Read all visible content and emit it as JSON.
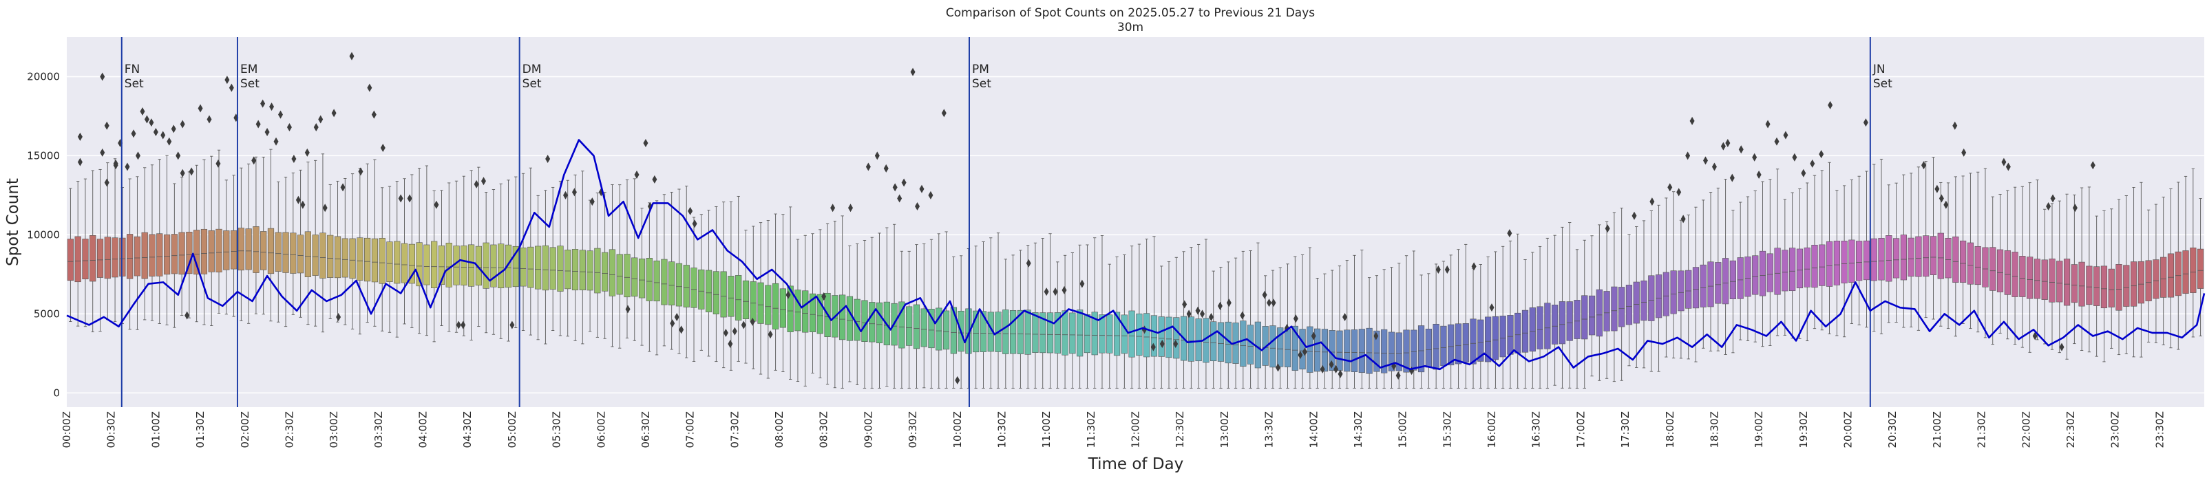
{
  "chart_data": {
    "type": "box",
    "title": "Comparison of Spot Counts on 2025.05.27 to Previous 21 Days",
    "subtitle": "30m",
    "xlabel": "Time of Day",
    "ylabel": "Spot Count",
    "ylim": [
      -900,
      22500
    ],
    "yticks": [
      0,
      5000,
      10000,
      15000,
      20000
    ],
    "ytick_labels": [
      "0",
      "5000",
      "10000",
      "15000",
      "20000"
    ],
    "x_unit_minutes": 5,
    "x_range_minutes": [
      0,
      1440
    ],
    "xticks_minutes": [
      0,
      30,
      60,
      90,
      120,
      150,
      180,
      210,
      240,
      270,
      300,
      330,
      360,
      390,
      420,
      450,
      480,
      510,
      540,
      570,
      600,
      630,
      660,
      690,
      720,
      750,
      780,
      810,
      840,
      870,
      900,
      930,
      960,
      990,
      1020,
      1050,
      1080,
      1110,
      1140,
      1170,
      1200,
      1230,
      1260,
      1290,
      1320,
      1350,
      1380,
      1410
    ],
    "xtick_labels": [
      "00:00Z",
      "00:30Z",
      "01:00Z",
      "01:30Z",
      "02:00Z",
      "02:30Z",
      "03:00Z",
      "03:30Z",
      "04:00Z",
      "04:30Z",
      "05:00Z",
      "05:30Z",
      "06:00Z",
      "06:30Z",
      "07:00Z",
      "07:30Z",
      "08:00Z",
      "08:30Z",
      "09:00Z",
      "09:30Z",
      "10:00Z",
      "10:30Z",
      "11:00Z",
      "11:30Z",
      "12:00Z",
      "12:30Z",
      "13:00Z",
      "13:30Z",
      "14:00Z",
      "14:30Z",
      "15:00Z",
      "15:30Z",
      "16:00Z",
      "16:30Z",
      "17:00Z",
      "17:30Z",
      "18:00Z",
      "18:30Z",
      "19:00Z",
      "19:30Z",
      "20:00Z",
      "20:30Z",
      "21:00Z",
      "21:30Z",
      "22:00Z",
      "22:30Z",
      "23:00Z",
      "23:30Z"
    ],
    "median_profile": {
      "minutes": [
        0,
        60,
        120,
        180,
        240,
        300,
        360,
        420,
        480,
        540,
        600,
        660,
        720,
        780,
        840,
        900,
        960,
        1020,
        1080,
        1140,
        1200,
        1260,
        1320,
        1380,
        1440
      ],
      "values": [
        8300,
        8600,
        9000,
        8500,
        8000,
        7900,
        7600,
        6600,
        5300,
        4400,
        3800,
        3700,
        3600,
        3100,
        2600,
        2500,
        3300,
        4600,
        6200,
        7400,
        8200,
        8600,
        7200,
        6500,
        7800
      ]
    },
    "current_day": {
      "name": "2025.05.27",
      "color": "#0000cc",
      "minutes": [
        0,
        15,
        25,
        35,
        45,
        55,
        65,
        75,
        85,
        95,
        105,
        115,
        125,
        135,
        145,
        155,
        165,
        175,
        185,
        195,
        205,
        215,
        225,
        235,
        245,
        255,
        265,
        275,
        285,
        295,
        305,
        315,
        325,
        335,
        345,
        355,
        365,
        375,
        385,
        395,
        405,
        415,
        425,
        435,
        445,
        455,
        465,
        475,
        485,
        495,
        505,
        515,
        525,
        535,
        545,
        555,
        565,
        575,
        585,
        595,
        605,
        615,
        625,
        635,
        645,
        655,
        665,
        675,
        685,
        695,
        705,
        715,
        725,
        735,
        745,
        755,
        765,
        775,
        785,
        795,
        805,
        815,
        825,
        835,
        845,
        855,
        865,
        875,
        885,
        895,
        905,
        915,
        925,
        935,
        945,
        955,
        965,
        975,
        985,
        995,
        1005,
        1015,
        1025,
        1035,
        1045,
        1055,
        1065,
        1075,
        1085,
        1095,
        1105,
        1115,
        1125,
        1135,
        1145,
        1155,
        1165,
        1175,
        1185,
        1195,
        1205,
        1215,
        1225,
        1235,
        1245,
        1255,
        1265,
        1275,
        1285,
        1295,
        1305,
        1315,
        1325,
        1335,
        1345,
        1355,
        1365,
        1375,
        1385,
        1395,
        1405,
        1415,
        1425,
        1435,
        1440
      ],
      "values": [
        4900,
        4300,
        4800,
        4200,
        5600,
        6900,
        7000,
        6200,
        8800,
        6000,
        5500,
        6400,
        5800,
        7400,
        6100,
        5200,
        6500,
        5800,
        6200,
        7100,
        5000,
        6900,
        6300,
        7800,
        5400,
        7700,
        8400,
        8200,
        7100,
        7800,
        9200,
        11400,
        10500,
        13800,
        16000,
        15000,
        11200,
        12100,
        9800,
        12000,
        12000,
        11200,
        9700,
        10300,
        9000,
        8300,
        7200,
        7800,
        6900,
        5400,
        6100,
        4600,
        5500,
        3900,
        5300,
        4000,
        5600,
        6000,
        4400,
        5800,
        3200,
        5300,
        3700,
        4300,
        5200,
        4800,
        4400,
        5300,
        5000,
        4600,
        5200,
        3800,
        4100,
        3800,
        4200,
        3200,
        3300,
        3900,
        3100,
        3400,
        2700,
        3500,
        4200,
        2900,
        3200,
        2200,
        2000,
        2400,
        1600,
        1900,
        1500,
        1700,
        1500,
        2100,
        1800,
        2500,
        1700,
        2700,
        2000,
        2300,
        2900,
        1600,
        2300,
        2500,
        2800,
        2100,
        3300,
        3100,
        3500,
        2900,
        3700,
        2900,
        4300,
        4000,
        3600,
        4500,
        3300,
        5200,
        4200,
        5000,
        7000,
        5200,
        5800,
        5400,
        5300,
        3900,
        5000,
        4300,
        5200,
        3500,
        4500,
        3400,
        4000,
        3000,
        3500,
        4300,
        3600,
        3900,
        3400,
        4100,
        3800,
        3800,
        3500,
        4300,
        6300
      ]
    },
    "vlines": [
      {
        "minute": 37,
        "label": "FN\nSet"
      },
      {
        "minute": 115,
        "label": "EM\nSet"
      },
      {
        "minute": 305,
        "label": "DM\nSet"
      },
      {
        "minute": 1215,
        "label": "JN\nSet"
      },
      {
        "minute": 608,
        "label": "PM\nSet"
      }
    ],
    "outliers": [
      [
        15,
        14600
      ],
      [
        15,
        16200
      ],
      [
        40,
        20000
      ],
      [
        40,
        15200
      ],
      [
        45,
        13300
      ],
      [
        45,
        16900
      ],
      [
        55,
        14400
      ],
      [
        55,
        14500
      ],
      [
        60,
        15800
      ],
      [
        68,
        14300
      ],
      [
        75,
        16400
      ],
      [
        80,
        15000
      ],
      [
        85,
        17800
      ],
      [
        90,
        17300
      ],
      [
        95,
        17100
      ],
      [
        100,
        16500
      ],
      [
        108,
        16300
      ],
      [
        115,
        15900
      ],
      [
        120,
        16700
      ],
      [
        125,
        15000
      ],
      [
        130,
        13900
      ],
      [
        130,
        17000
      ],
      [
        135,
        4900
      ],
      [
        140,
        14000
      ],
      [
        150,
        18000
      ],
      [
        160,
        17300
      ],
      [
        170,
        14500
      ],
      [
        180,
        19800
      ],
      [
        185,
        19300
      ],
      [
        190,
        17400
      ],
      [
        210,
        14700
      ],
      [
        215,
        17000
      ],
      [
        220,
        18300
      ],
      [
        225,
        16500
      ],
      [
        230,
        18100
      ],
      [
        235,
        15900
      ],
      [
        240,
        17600
      ],
      [
        250,
        16800
      ],
      [
        255,
        14800
      ],
      [
        260,
        12200
      ],
      [
        265,
        11900
      ],
      [
        270,
        15200
      ],
      [
        280,
        16800
      ],
      [
        285,
        17300
      ],
      [
        290,
        11700
      ],
      [
        300,
        17700
      ],
      [
        305,
        4800
      ],
      [
        310,
        13000
      ],
      [
        320,
        21300
      ],
      [
        330,
        14000
      ],
      [
        340,
        19300
      ],
      [
        345,
        17600
      ],
      [
        355,
        15500
      ],
      [
        375,
        12300
      ],
      [
        385,
        12300
      ],
      [
        415,
        11900
      ],
      [
        440,
        4300
      ],
      [
        445,
        4300
      ],
      [
        460,
        13200
      ],
      [
        468,
        13400
      ],
      [
        500,
        4300
      ],
      [
        540,
        14800
      ],
      [
        560,
        12500
      ],
      [
        570,
        12700
      ],
      [
        590,
        12100
      ],
      [
        600,
        12700
      ],
      [
        630,
        5300
      ],
      [
        640,
        13800
      ],
      [
        650,
        15800
      ],
      [
        655,
        11800
      ],
      [
        660,
        13500
      ],
      [
        680,
        4400
      ],
      [
        685,
        4800
      ],
      [
        690,
        4000
      ],
      [
        700,
        11500
      ],
      [
        705,
        10700
      ],
      [
        740,
        3800
      ],
      [
        745,
        3100
      ],
      [
        750,
        3900
      ],
      [
        760,
        4300
      ],
      [
        770,
        4500
      ],
      [
        790,
        3700
      ],
      [
        810,
        6200
      ],
      [
        850,
        6100
      ],
      [
        860,
        11700
      ],
      [
        880,
        11700
      ],
      [
        900,
        14300
      ],
      [
        910,
        15000
      ],
      [
        920,
        14200
      ],
      [
        930,
        13000
      ],
      [
        935,
        12300
      ],
      [
        940,
        13300
      ],
      [
        950,
        20300
      ],
      [
        955,
        11800
      ],
      [
        960,
        12900
      ],
      [
        970,
        12500
      ],
      [
        985,
        17700
      ],
      [
        1000,
        800
      ],
      [
        1080,
        8200
      ],
      [
        1100,
        6400
      ],
      [
        1110,
        6400
      ],
      [
        1120,
        6500
      ],
      [
        1140,
        6900
      ],
      [
        1210,
        4000
      ],
      [
        1220,
        2900
      ],
      [
        1230,
        3100
      ],
      [
        1245,
        3100
      ],
      [
        1255,
        5600
      ],
      [
        1260,
        5000
      ],
      [
        1270,
        5200
      ],
      [
        1275,
        5000
      ],
      [
        1285,
        4800
      ],
      [
        1295,
        5500
      ],
      [
        1305,
        5700
      ],
      [
        1320,
        4900
      ],
      [
        1345,
        6200
      ],
      [
        1350,
        5700
      ],
      [
        1355,
        5700
      ],
      [
        1360,
        1600
      ],
      [
        1370,
        4100
      ],
      [
        1380,
        4700
      ],
      [
        1385,
        2400
      ],
      [
        1390,
        2600
      ],
      [
        1400,
        3600
      ],
      [
        1410,
        1500
      ],
      [
        1420,
        1800
      ],
      [
        1425,
        1500
      ],
      [
        1430,
        1200
      ],
      [
        1435,
        4800
      ],
      [
        1470,
        3600
      ],
      [
        1490,
        1700
      ],
      [
        1495,
        1100
      ],
      [
        1510,
        1400
      ],
      [
        1540,
        7800
      ],
      [
        1550,
        7800
      ],
      [
        1580,
        8000
      ],
      [
        1600,
        5400
      ],
      [
        1620,
        10100
      ],
      [
        1730,
        10400
      ],
      [
        1760,
        11200
      ],
      [
        1780,
        12100
      ],
      [
        1800,
        13000
      ],
      [
        1810,
        12700
      ],
      [
        1815,
        11000
      ],
      [
        1820,
        15000
      ],
      [
        1825,
        17200
      ],
      [
        1840,
        14700
      ],
      [
        1850,
        14300
      ],
      [
        1860,
        15600
      ],
      [
        1865,
        15800
      ],
      [
        1870,
        13600
      ],
      [
        1880,
        15400
      ],
      [
        1895,
        14900
      ],
      [
        1900,
        13800
      ],
      [
        1910,
        17000
      ],
      [
        1920,
        15900
      ],
      [
        1930,
        16300
      ],
      [
        1940,
        14900
      ],
      [
        1950,
        13900
      ],
      [
        1960,
        14500
      ],
      [
        1970,
        15100
      ],
      [
        1980,
        18200
      ],
      [
        2020,
        17100
      ],
      [
        2085,
        14400
      ],
      [
        2100,
        12900
      ],
      [
        2105,
        12300
      ],
      [
        2110,
        11900
      ],
      [
        2120,
        16900
      ],
      [
        2130,
        15200
      ],
      [
        2175,
        14600
      ],
      [
        2180,
        14300
      ],
      [
        2210,
        3600
      ],
      [
        2225,
        11800
      ],
      [
        2230,
        12300
      ],
      [
        2240,
        2900
      ],
      [
        2255,
        11700
      ],
      [
        2275,
        14400
      ]
    ]
  }
}
